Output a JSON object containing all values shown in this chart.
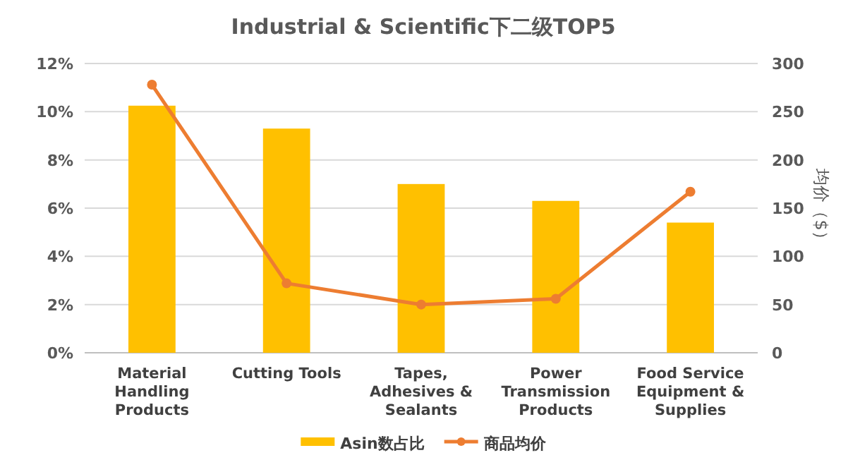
{
  "chart_data": {
    "type": "bar",
    "title": "Industrial & Scientific下二级TOP5",
    "categories": [
      "Material Handling Products",
      "Cutting Tools",
      "Tapes, Adhesives & Sealants",
      "Power Transmission Products",
      "Food Service Equipment & Supplies"
    ],
    "series": [
      {
        "name": "Asin数占比",
        "color": "#ffc000",
        "values": [
          10.25,
          9.3,
          7.0,
          6.3,
          5.4
        ]
      },
      {
        "name": "商品均价",
        "type": "line",
        "axis": "y2",
        "color": "#ed7d31",
        "marker": "circle",
        "values": [
          278,
          72,
          50,
          56,
          167
        ]
      }
    ],
    "ylim": [
      0,
      12
    ],
    "yticks": [
      {
        "value": 0,
        "label": "0%"
      },
      {
        "value": 2,
        "label": "2%"
      },
      {
        "value": 4,
        "label": "4%"
      },
      {
        "value": 6,
        "label": "6%"
      },
      {
        "value": 8,
        "label": "8%"
      },
      {
        "value": 10,
        "label": "10%"
      },
      {
        "value": 12,
        "label": "12%"
      }
    ],
    "y2label": "均价（$）",
    "y2lim": [
      0,
      300
    ],
    "y2ticks": [
      0,
      50,
      100,
      150,
      200,
      250,
      300
    ],
    "grid": "y",
    "legend": "bottom"
  }
}
